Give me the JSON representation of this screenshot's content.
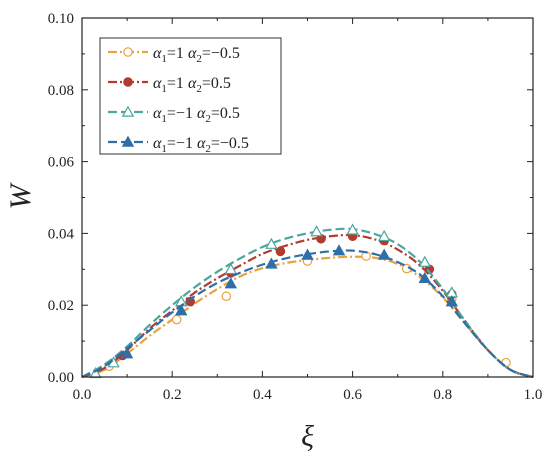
{
  "chart_data": {
    "type": "line",
    "xlabel": "ξ",
    "ylabel": "W",
    "xlim": [
      0.0,
      1.0
    ],
    "ylim": [
      0.0,
      0.1
    ],
    "x_ticks": [
      "0.0",
      "0.2",
      "0.4",
      "0.6",
      "0.8",
      "1.0"
    ],
    "y_ticks": [
      "0.00",
      "0.02",
      "0.04",
      "0.06",
      "0.08",
      "0.10"
    ],
    "grid": false,
    "legend_position": "top-left",
    "series": [
      {
        "name": "α1=1 α2=−0.5",
        "legend": {
          "a1_sym": "α",
          "a1_sub": "1",
          "a1_val": "=1 ",
          "a2_sym": "α",
          "a2_sub": "2",
          "a2_val": "=−0.5"
        },
        "color": "#E8A33C",
        "dash": "dashdot",
        "marker": "circle-open",
        "x": [
          0.0,
          0.05,
          0.1,
          0.15,
          0.2,
          0.25,
          0.3,
          0.35,
          0.4,
          0.45,
          0.5,
          0.55,
          0.6,
          0.65,
          0.7,
          0.75,
          0.8,
          0.85,
          0.9,
          0.95,
          1.0
        ],
        "y": [
          0.0,
          0.002,
          0.0065,
          0.0115,
          0.016,
          0.0205,
          0.0245,
          0.028,
          0.0303,
          0.0317,
          0.0326,
          0.0332,
          0.0335,
          0.0332,
          0.0315,
          0.0278,
          0.0222,
          0.0148,
          0.0075,
          0.002,
          0.0
        ],
        "markers_x": [
          0.06,
          0.21,
          0.32,
          0.5,
          0.63,
          0.72,
          0.82,
          0.94
        ],
        "markers_y": [
          0.003,
          0.016,
          0.0225,
          0.0323,
          0.0337,
          0.0302,
          0.0218,
          0.004
        ]
      },
      {
        "name": "α1=1 α2=0.5",
        "legend": {
          "a1_sym": "α",
          "a1_sub": "1",
          "a1_val": "=1 ",
          "a2_sym": "α",
          "a2_sub": "2",
          "a2_val": "=0.5"
        },
        "color": "#B23A2E",
        "dash": "dashdot",
        "marker": "circle-filled",
        "x": [
          0.0,
          0.05,
          0.1,
          0.15,
          0.2,
          0.25,
          0.3,
          0.35,
          0.4,
          0.45,
          0.5,
          0.55,
          0.6,
          0.65,
          0.7,
          0.75,
          0.8,
          0.85,
          0.9,
          0.95,
          1.0
        ],
        "y": [
          0.0,
          0.0025,
          0.0075,
          0.0135,
          0.0185,
          0.0235,
          0.0275,
          0.031,
          0.0343,
          0.0365,
          0.0382,
          0.0392,
          0.0395,
          0.0383,
          0.0355,
          0.031,
          0.024,
          0.0155,
          0.0075,
          0.002,
          0.0
        ],
        "markers_x": [
          0.09,
          0.24,
          0.33,
          0.44,
          0.53,
          0.6,
          0.67,
          0.77,
          0.82
        ],
        "markers_y": [
          0.006,
          0.021,
          0.029,
          0.035,
          0.0385,
          0.0392,
          0.038,
          0.03,
          0.023
        ]
      },
      {
        "name": "α1=−1 α2=0.5",
        "legend": {
          "a1_sym": "α",
          "a1_sub": "1",
          "a1_val": "=−1 ",
          "a2_sym": "α",
          "a2_sub": "2",
          "a2_val": "=0.5"
        },
        "color": "#4CA69E",
        "dash": "dash",
        "marker": "triangle-open",
        "x": [
          0.0,
          0.05,
          0.1,
          0.15,
          0.2,
          0.25,
          0.3,
          0.35,
          0.4,
          0.45,
          0.5,
          0.55,
          0.6,
          0.65,
          0.7,
          0.75,
          0.8,
          0.85,
          0.9,
          0.95,
          1.0
        ],
        "y": [
          0.0,
          0.0035,
          0.0085,
          0.0145,
          0.02,
          0.025,
          0.0293,
          0.033,
          0.0362,
          0.0385,
          0.04,
          0.041,
          0.0412,
          0.0398,
          0.037,
          0.032,
          0.0245,
          0.0155,
          0.0075,
          0.002,
          0.0
        ],
        "markers_x": [
          0.03,
          0.07,
          0.22,
          0.33,
          0.42,
          0.52,
          0.6,
          0.67,
          0.76,
          0.82
        ],
        "markers_y": [
          0.001,
          0.004,
          0.021,
          0.03,
          0.037,
          0.0405,
          0.041,
          0.0392,
          0.032,
          0.0235
        ]
      },
      {
        "name": "α1=−1 α2=−0.5",
        "legend": {
          "a1_sym": "α",
          "a1_sub": "1",
          "a1_val": "=−1 ",
          "a2_sym": "α",
          "a2_sub": "2",
          "a2_val": "=−0.5"
        },
        "color": "#2F6FA8",
        "dash": "dash",
        "marker": "triangle-filled",
        "x": [
          0.0,
          0.05,
          0.1,
          0.15,
          0.2,
          0.25,
          0.3,
          0.35,
          0.4,
          0.45,
          0.5,
          0.55,
          0.6,
          0.65,
          0.7,
          0.75,
          0.8,
          0.85,
          0.9,
          0.95,
          1.0
        ],
        "y": [
          0.0,
          0.003,
          0.008,
          0.013,
          0.018,
          0.0225,
          0.0262,
          0.029,
          0.0313,
          0.033,
          0.0342,
          0.035,
          0.0352,
          0.0342,
          0.032,
          0.0285,
          0.0225,
          0.0148,
          0.0075,
          0.002,
          0.0
        ],
        "markers_x": [
          0.1,
          0.22,
          0.33,
          0.42,
          0.5,
          0.57,
          0.67,
          0.76,
          0.82
        ],
        "markers_y": [
          0.0065,
          0.0185,
          0.026,
          0.0315,
          0.034,
          0.0352,
          0.034,
          0.0275,
          0.021
        ]
      }
    ]
  }
}
